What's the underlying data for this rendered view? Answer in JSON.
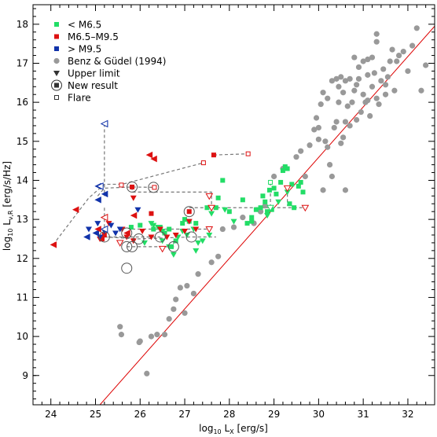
{
  "chart_data": {
    "type": "scatter",
    "xlabel_base": "log",
    "xlabel_sub": "10",
    "xlabel_rest": " L",
    "xlabel_sub2": "X",
    "xlabel_unit": " [erg/s]",
    "ylabel_base": "log",
    "ylabel_sub": "10",
    "ylabel_rest": " L",
    "ylabel_sub2": "ν,R",
    "ylabel_unit": " [erg/s/Hz]",
    "xlim": [
      23.6,
      32.6
    ],
    "ylim": [
      8.25,
      18.5
    ],
    "xticks": [
      "24",
      "25",
      "26",
      "27",
      "28",
      "29",
      "30",
      "31",
      "32"
    ],
    "yticks": [
      "9",
      "10",
      "11",
      "12",
      "13",
      "14",
      "15",
      "16",
      "17",
      "18"
    ],
    "legend_position": "top-left",
    "legend": [
      {
        "label": "< M6.5",
        "marker": "square",
        "color": "#22dd66"
      },
      {
        "label": "M6.5–M9.5",
        "marker": "square",
        "color": "#dd1111"
      },
      {
        "label": "> M9.5",
        "marker": "square",
        "color": "#1133aa"
      },
      {
        "label": "Benz & Güdel (1994)",
        "marker": "circle",
        "color": "#999999"
      },
      {
        "label": "Upper limit",
        "marker": "triangle-down",
        "color": "#333333"
      },
      {
        "label": "New result",
        "marker": "circled-square",
        "color": "#333333"
      },
      {
        "label": "Flare",
        "marker": "open-square",
        "color": "#333333"
      }
    ],
    "colors": {
      "early": "#22dd66",
      "mid": "#dd1111",
      "late": "#1133aa",
      "gudel": "#999999",
      "relation": "#dd0000",
      "link": "#777777"
    },
    "relation_line": {
      "x": [
        25.1,
        32.6
      ],
      "y": [
        8.25,
        17.95
      ]
    },
    "series": [
      {
        "name": "Benz & Güdel (1994)",
        "marker": "circle",
        "color": "#999999",
        "points": [
          [
            25.55,
            10.25
          ],
          [
            25.58,
            10.05
          ],
          [
            25.98,
            9.85
          ],
          [
            26.0,
            9.88
          ],
          [
            26.15,
            9.05
          ],
          [
            26.25,
            10.0
          ],
          [
            26.38,
            10.05
          ],
          [
            26.55,
            10.05
          ],
          [
            26.65,
            10.45
          ],
          [
            26.75,
            10.7
          ],
          [
            26.8,
            10.95
          ],
          [
            26.9,
            11.25
          ],
          [
            27.0,
            10.6
          ],
          [
            27.05,
            11.3
          ],
          [
            27.2,
            11.1
          ],
          [
            27.3,
            11.6
          ],
          [
            27.6,
            11.9
          ],
          [
            27.75,
            12.05
          ],
          [
            27.85,
            12.75
          ],
          [
            28.1,
            12.8
          ],
          [
            28.3,
            13.05
          ],
          [
            28.55,
            12.9
          ],
          [
            28.7,
            13.2
          ],
          [
            28.8,
            13.35
          ],
          [
            29.0,
            14.1
          ],
          [
            29.2,
            14.3
          ],
          [
            29.5,
            14.6
          ],
          [
            29.6,
            14.75
          ],
          [
            29.7,
            14.1
          ],
          [
            29.8,
            14.9
          ],
          [
            29.9,
            15.3
          ],
          [
            30.0,
            15.35
          ],
          [
            30.05,
            15.95
          ],
          [
            30.15,
            15.0
          ],
          [
            30.2,
            14.85
          ],
          [
            30.35,
            15.35
          ],
          [
            30.3,
            14.1
          ],
          [
            30.4,
            15.5
          ],
          [
            30.45,
            16.4
          ],
          [
            30.5,
            14.95
          ],
          [
            30.55,
            15.1
          ],
          [
            30.6,
            15.5
          ],
          [
            30.65,
            15.9
          ],
          [
            30.7,
            16.6
          ],
          [
            30.75,
            16.0
          ],
          [
            30.8,
            16.3
          ],
          [
            30.85,
            15.55
          ],
          [
            30.9,
            16.6
          ],
          [
            30.95,
            15.75
          ],
          [
            31.0,
            16.2
          ],
          [
            31.05,
            16.0
          ],
          [
            31.1,
            16.7
          ],
          [
            31.15,
            15.65
          ],
          [
            31.2,
            16.4
          ],
          [
            31.25,
            16.75
          ],
          [
            31.3,
            16.1
          ],
          [
            31.35,
            15.95
          ],
          [
            31.4,
            16.55
          ],
          [
            31.45,
            16.85
          ],
          [
            31.5,
            16.2
          ],
          [
            31.55,
            16.65
          ],
          [
            31.6,
            17.05
          ],
          [
            31.65,
            17.35
          ],
          [
            31.7,
            16.3
          ],
          [
            31.2,
            17.15
          ],
          [
            31.3,
            17.55
          ],
          [
            31.1,
            17.1
          ],
          [
            31.0,
            17.05
          ],
          [
            30.9,
            16.9
          ],
          [
            30.8,
            17.15
          ],
          [
            30.6,
            16.55
          ],
          [
            30.5,
            16.65
          ],
          [
            30.4,
            16.6
          ],
          [
            30.3,
            16.55
          ],
          [
            30.2,
            16.1
          ],
          [
            30.1,
            16.25
          ],
          [
            29.95,
            15.6
          ],
          [
            30.0,
            15.05
          ],
          [
            30.1,
            13.75
          ],
          [
            30.7,
            15.4
          ],
          [
            31.75,
            17.05
          ],
          [
            31.9,
            17.3
          ],
          [
            32.0,
            16.8
          ],
          [
            32.1,
            17.45
          ],
          [
            32.2,
            17.9
          ],
          [
            32.3,
            16.3
          ],
          [
            32.4,
            16.95
          ],
          [
            31.8,
            17.2
          ],
          [
            31.3,
            17.75
          ],
          [
            30.6,
            13.75
          ],
          [
            30.55,
            16.25
          ],
          [
            30.45,
            16.0
          ],
          [
            30.85,
            16.45
          ],
          [
            31.1,
            16.05
          ],
          [
            31.5,
            16.45
          ],
          [
            30.25,
            14.4
          ]
        ]
      },
      {
        "name": "< M6.5",
        "marker": "square",
        "color": "#22dd66",
        "points": [
          [
            25.8,
            12.8
          ],
          [
            26.0,
            12.85
          ],
          [
            26.3,
            12.75
          ],
          [
            26.45,
            12.8
          ],
          [
            26.55,
            12.65
          ],
          [
            26.65,
            12.75
          ],
          [
            26.7,
            12.3
          ],
          [
            26.8,
            12.45
          ],
          [
            26.95,
            12.9
          ],
          [
            27.0,
            13.0
          ],
          [
            27.1,
            12.95
          ],
          [
            27.25,
            12.9
          ],
          [
            27.5,
            13.3
          ],
          [
            27.7,
            13.3
          ],
          [
            27.75,
            13.55
          ],
          [
            27.85,
            14.0
          ],
          [
            28.0,
            13.2
          ],
          [
            28.3,
            13.5
          ],
          [
            28.5,
            13.05
          ],
          [
            28.6,
            13.25
          ],
          [
            28.7,
            13.3
          ],
          [
            28.75,
            13.6
          ],
          [
            28.8,
            13.45
          ],
          [
            28.85,
            13.2
          ],
          [
            28.9,
            13.75
          ],
          [
            29.0,
            13.8
          ],
          [
            29.05,
            13.65
          ],
          [
            29.15,
            13.95
          ],
          [
            29.2,
            14.25
          ],
          [
            29.25,
            14.35
          ],
          [
            29.3,
            14.3
          ],
          [
            29.35,
            13.4
          ],
          [
            29.4,
            13.9
          ],
          [
            29.45,
            13.3
          ],
          [
            29.55,
            13.85
          ],
          [
            28.95,
            13.25
          ],
          [
            29.6,
            13.95
          ],
          [
            29.65,
            13.7
          ],
          [
            28.5,
            12.95
          ],
          [
            28.4,
            12.9
          ]
        ]
      },
      {
        "name": "M6.5–M9.5",
        "marker": "square",
        "color": "#dd1111",
        "points": [
          [
            25.15,
            12.5
          ],
          [
            25.2,
            12.6
          ],
          [
            26.25,
            13.15
          ],
          [
            27.1,
            13.2
          ],
          [
            27.65,
            14.65
          ],
          [
            25.82,
            13.83
          ]
        ]
      },
      {
        "name": "< M6.5 upper limits",
        "marker": "triangle-down",
        "color": "#22dd66",
        "points": [
          [
            26.1,
            12.4
          ],
          [
            26.3,
            12.85
          ],
          [
            26.4,
            12.8
          ],
          [
            26.5,
            12.7
          ],
          [
            26.65,
            12.3
          ],
          [
            26.75,
            12.1
          ],
          [
            26.85,
            12.55
          ],
          [
            26.95,
            12.7
          ],
          [
            27.05,
            12.6
          ],
          [
            27.2,
            12.75
          ],
          [
            27.3,
            12.4
          ],
          [
            27.4,
            12.45
          ],
          [
            27.55,
            12.6
          ],
          [
            27.6,
            13.15
          ],
          [
            27.9,
            13.25
          ],
          [
            28.1,
            12.95
          ],
          [
            28.85,
            13.1
          ],
          [
            29.1,
            13.45
          ],
          [
            29.3,
            13.7
          ],
          [
            26.5,
            12.45
          ],
          [
            27.25,
            12.2
          ],
          [
            26.25,
            12.9
          ]
        ]
      },
      {
        "name": "M6.5–M9.5 upper limits",
        "marker": "triangle-down",
        "color": "#dd1111",
        "points": [
          [
            25.1,
            12.5
          ],
          [
            25.3,
            12.9
          ],
          [
            25.6,
            12.75
          ],
          [
            25.7,
            12.55
          ],
          [
            25.85,
            12.45
          ],
          [
            26.05,
            12.7
          ],
          [
            26.25,
            12.55
          ],
          [
            26.45,
            12.75
          ],
          [
            26.6,
            12.55
          ],
          [
            26.8,
            12.6
          ],
          [
            27.0,
            12.7
          ],
          [
            27.1,
            12.95
          ],
          [
            27.25,
            12.75
          ],
          [
            25.85,
            13.55
          ]
        ]
      },
      {
        "name": "> M9.5 upper limits",
        "marker": "triangle-down",
        "color": "#1133aa",
        "points": [
          [
            24.85,
            12.75
          ],
          [
            25.05,
            12.9
          ],
          [
            25.2,
            12.7
          ],
          [
            25.45,
            12.65
          ],
          [
            25.55,
            12.75
          ],
          [
            25.35,
            12.85
          ],
          [
            25.95,
            13.25
          ],
          [
            25.1,
            12.55
          ]
        ]
      },
      {
        "name": "> M9.5 X-ray limits",
        "marker": "triangle-left",
        "color": "#1133aa",
        "points": [
          [
            24.8,
            12.55
          ],
          [
            25.0,
            12.65
          ],
          [
            25.05,
            13.5
          ],
          [
            25.2,
            15.45
          ],
          [
            25.05,
            13.85
          ],
          [
            25.2,
            13.65
          ]
        ]
      },
      {
        "name": "M6.5–M9.5 X-ray limits",
        "marker": "triangle-left",
        "color": "#dd1111",
        "points": [
          [
            24.05,
            12.35
          ],
          [
            24.55,
            13.25
          ],
          [
            25.05,
            12.75
          ],
          [
            26.3,
            14.55
          ],
          [
            26.2,
            14.65
          ],
          [
            25.7,
            12.65
          ],
          [
            25.85,
            13.1
          ]
        ]
      },
      {
        "name": "New result",
        "marker": "circle-open",
        "color": "#555555",
        "points": [
          [
            25.2,
            12.55
          ],
          [
            25.7,
            12.65
          ],
          [
            25.7,
            12.3
          ],
          [
            25.82,
            12.3
          ],
          [
            25.97,
            12.5
          ],
          [
            26.3,
            13.82
          ],
          [
            26.45,
            12.55
          ],
          [
            26.75,
            12.3
          ],
          [
            27.15,
            12.55
          ],
          [
            25.7,
            11.75
          ],
          [
            25.82,
            13.83
          ],
          [
            27.1,
            13.2
          ]
        ]
      },
      {
        "name": "Flare",
        "marker": "open-square",
        "color": "#dd1111",
        "points": [
          [
            25.58,
            13.88
          ],
          [
            26.32,
            13.82
          ],
          [
            27.42,
            14.45
          ],
          [
            28.42,
            14.68
          ]
        ]
      },
      {
        "name": "Flare (< M6.5)",
        "marker": "open-square",
        "color": "#22dd66",
        "points": [
          [
            28.92,
            13.95
          ]
        ]
      }
    ],
    "links": [
      [
        [
          24.05,
          12.35
        ],
        [
          24.85,
          13.55
        ],
        [
          25.2,
          13.9
        ],
        [
          25.6,
          13.9
        ],
        [
          27.42,
          14.45
        ]
      ],
      [
        [
          25.05,
          13.6
        ],
        [
          25.2,
          13.8
        ],
        [
          25.82,
          13.83
        ],
        [
          26.32,
          13.82
        ]
      ],
      [
        [
          25.2,
          15.45
        ],
        [
          25.2,
          13.6
        ]
      ],
      [
        [
          25.2,
          13.3
        ],
        [
          25.2,
          12.55
        ],
        [
          25.7,
          12.55
        ],
        [
          26.45,
          12.55
        ]
      ],
      [
        [
          25.2,
          12.55
        ],
        [
          25.97,
          12.5
        ],
        [
          27.15,
          12.55
        ],
        [
          27.7,
          12.55
        ]
      ],
      [
        [
          25.7,
          12.3
        ],
        [
          26.75,
          12.3
        ],
        [
          26.75,
          12.45
        ]
      ],
      [
        [
          25.82,
          13.83
        ],
        [
          25.82,
          13.7
        ],
        [
          27.6,
          13.7
        ],
        [
          27.6,
          13.35
        ]
      ],
      [
        [
          25.82,
          12.75
        ],
        [
          27.6,
          12.75
        ]
      ],
      [
        [
          27.65,
          14.65
        ],
        [
          28.42,
          14.68
        ]
      ],
      [
        [
          28.92,
          13.95
        ],
        [
          28.92,
          13.35
        ]
      ],
      [
        [
          27.1,
          13.3
        ],
        [
          29.7,
          13.3
        ]
      ],
      [
        [
          29.3,
          13.8
        ],
        [
          29.3,
          13.35
        ]
      ]
    ],
    "open_triangles": [
      {
        "x": 27.55,
        "y": 13.6,
        "color": "#dd1111"
      },
      {
        "x": 27.55,
        "y": 12.75,
        "color": "#dd1111"
      },
      {
        "x": 27.6,
        "y": 13.3,
        "color": "#dd1111"
      },
      {
        "x": 29.7,
        "y": 13.3,
        "color": "#dd1111"
      },
      {
        "x": 28.92,
        "y": 13.3,
        "color": "#22dd66"
      },
      {
        "x": 29.3,
        "y": 13.8,
        "color": "#dd1111"
      },
      {
        "x": 25.55,
        "y": 12.4,
        "color": "#dd1111"
      },
      {
        "x": 26.5,
        "y": 12.25,
        "color": "#dd1111"
      }
    ],
    "open_left_triangles": [
      {
        "x": 25.2,
        "y": 15.45,
        "color": "#1133aa"
      },
      {
        "x": 25.1,
        "y": 13.85,
        "color": "#1133aa"
      },
      {
        "x": 25.2,
        "y": 13.05,
        "color": "#dd1111"
      },
      {
        "x": 25.2,
        "y": 12.75,
        "color": "#1133aa"
      }
    ]
  }
}
